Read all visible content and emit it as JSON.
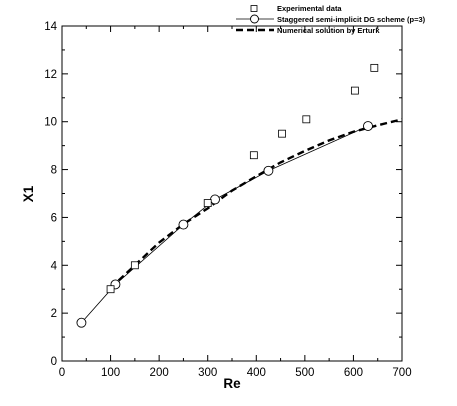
{
  "chart_data": {
    "type": "scatter",
    "xlabel": "Re",
    "ylabel": "X1",
    "xlim": [
      0,
      700
    ],
    "ylim": [
      0,
      14
    ],
    "xticks": [
      0,
      100,
      200,
      300,
      400,
      500,
      600,
      700
    ],
    "yticks": [
      0,
      2,
      4,
      6,
      8,
      10,
      12,
      14
    ],
    "grid": false,
    "legend_position": "top-right",
    "series": [
      {
        "name": "Experimental data",
        "style": "open-square-markers",
        "color": "#000000",
        "x": [
          100,
          150,
          300,
          395,
          453,
          503,
          603,
          643
        ],
        "y": [
          3.0,
          4.0,
          6.6,
          8.6,
          9.5,
          10.1,
          11.3,
          12.25
        ]
      },
      {
        "name": "Staggered semi-implicit DG scheme (p=3)",
        "style": "thin-line-open-circles",
        "color": "#000000",
        "x": [
          40,
          110,
          250,
          315,
          425,
          630
        ],
        "y": [
          1.6,
          3.2,
          5.7,
          6.75,
          7.95,
          9.82
        ]
      },
      {
        "name": "Numerical solution by Erturk",
        "style": "thick-dashed-line",
        "color": "#000000",
        "x": [
          100,
          150,
          200,
          250,
          300,
          350,
          400,
          450,
          500,
          550,
          600,
          650,
          700
        ],
        "y": [
          3.05,
          4.0,
          4.95,
          5.72,
          6.38,
          7.12,
          7.72,
          8.3,
          8.78,
          9.22,
          9.58,
          9.85,
          10.1
        ]
      }
    ]
  }
}
